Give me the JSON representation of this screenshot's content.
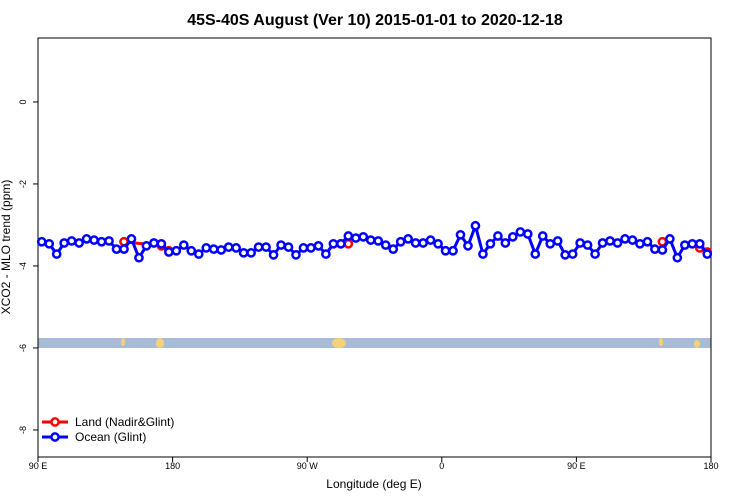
{
  "chart_data": {
    "type": "line",
    "title": "45S-40S August (Ver 10)   2015-01-01 to 2020-12-18",
    "x_label": "Longitude (deg E)",
    "y_label": "XCO2 - MLO trend (ppm)",
    "xlim": [
      90,
      540
    ],
    "ylim": [
      1.56,
      -8.66
    ],
    "xticks": [
      {
        "value": 90,
        "label": "90 E"
      },
      {
        "value": 180,
        "label": "180"
      },
      {
        "value": 270,
        "label": "90 W"
      },
      {
        "value": 360,
        "label": "0"
      },
      {
        "value": 450,
        "label": "90 E"
      },
      {
        "value": 540,
        "label": "180"
      }
    ],
    "yticks": [
      0,
      -2,
      -4,
      -6,
      -8
    ],
    "legend": "bottom-left",
    "series": [
      {
        "name": "Land (Nadir&Glint)",
        "color": "#ff0000",
        "x": [
          147.5,
          172.5,
          177.5,
          null,
          292.5,
          297.5,
          null,
          507.5,
          null,
          532.5,
          537.5
        ],
        "values": [
          -3.41,
          -3.51,
          -3.63,
          null,
          -3.46,
          -3.46,
          null,
          -3.41,
          null,
          -3.56,
          -3.66
        ]
      },
      {
        "name": "Ocean (Glint)",
        "color": "#0000ff",
        "x": [
          92.5,
          97.5,
          102.5,
          107.5,
          112.5,
          117.5,
          122.5,
          127.5,
          132.5,
          137.5,
          142.5,
          147.5,
          152.5,
          157.5,
          162.5,
          167.5,
          172.5,
          177.5,
          182.5,
          187.5,
          192.5,
          197.5,
          202.5,
          207.5,
          212.5,
          217.5,
          222.5,
          227.5,
          232.5,
          237.5,
          242.5,
          247.5,
          252.5,
          257.5,
          262.5,
          267.5,
          272.5,
          277.5,
          282.5,
          287.5,
          292.5,
          297.5,
          302.5,
          307.5,
          312.5,
          317.5,
          322.5,
          327.5,
          332.5,
          337.5,
          342.5,
          347.5,
          352.5,
          357.5,
          362.5,
          367.5,
          372.5,
          377.5,
          382.5,
          387.5,
          392.5,
          397.5,
          402.5,
          407.5,
          412.5,
          417.5,
          422.5,
          427.5,
          432.5,
          437.5,
          442.5,
          447.5,
          452.5,
          457.5,
          462.5,
          467.5,
          472.5,
          477.5,
          482.5,
          487.5,
          492.5,
          497.5,
          502.5,
          507.5,
          512.5,
          517.5,
          522.5,
          527.5,
          532.5,
          537.5
        ],
        "values": [
          -3.41,
          -3.46,
          -3.71,
          -3.44,
          -3.39,
          -3.44,
          -3.34,
          -3.37,
          -3.41,
          -3.39,
          -3.59,
          -3.59,
          -3.34,
          -3.8,
          -3.51,
          -3.44,
          -3.46,
          -3.66,
          -3.63,
          -3.49,
          -3.63,
          -3.71,
          -3.56,
          -3.59,
          -3.61,
          -3.54,
          -3.56,
          -3.68,
          -3.68,
          -3.54,
          -3.54,
          -3.73,
          -3.49,
          -3.54,
          -3.73,
          -3.56,
          -3.56,
          -3.51,
          -3.71,
          -3.46,
          -3.46,
          -3.27,
          -3.32,
          -3.29,
          -3.37,
          -3.39,
          -3.49,
          -3.59,
          -3.41,
          -3.34,
          -3.44,
          -3.44,
          -3.37,
          -3.46,
          -3.63,
          -3.63,
          -3.24,
          -3.51,
          -3.02,
          -3.71,
          -3.46,
          -3.27,
          -3.44,
          -3.29,
          -3.17,
          -3.22,
          -3.71,
          -3.27,
          -3.46,
          -3.39,
          -3.73,
          -3.71,
          -3.44,
          -3.49,
          -3.71,
          -3.44,
          -3.39,
          -3.44,
          -3.34,
          -3.37,
          -3.46,
          -3.41,
          -3.59,
          -3.61,
          -3.34,
          -3.8,
          -3.49,
          -3.46,
          -3.46,
          -3.71
        ]
      }
    ]
  }
}
